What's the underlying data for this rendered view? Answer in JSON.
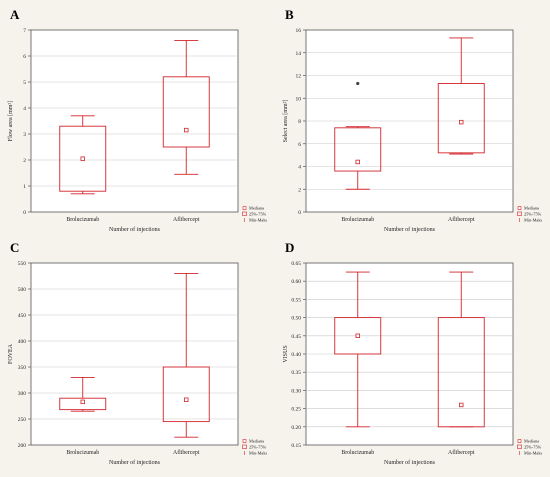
{
  "colors": {
    "box": "#d2232a",
    "plot_bg": "#ffffff",
    "grid": "#c9c9c9",
    "axis": "#555555",
    "outlier": "#444444"
  },
  "legend": {
    "median": "Mediana",
    "box": "25%-75%",
    "whisker": "Min-Maks"
  },
  "chart_data": [
    {
      "panel": "A",
      "type": "box",
      "ylabel": "Flow area [mm²]",
      "xlabel": "Number of injections",
      "categories": [
        "Brolucizumab",
        "Aflibercept"
      ],
      "ylim": [
        0,
        7
      ],
      "yticks": [
        0,
        1,
        2,
        3,
        4,
        5,
        6,
        7
      ],
      "grid": true,
      "boxes": [
        {
          "min": 0.7,
          "q1": 0.8,
          "median": 2.05,
          "q3": 3.3,
          "max": 3.7,
          "outliers": []
        },
        {
          "min": 1.45,
          "q1": 2.5,
          "median": 3.15,
          "q3": 5.2,
          "max": 6.6,
          "outliers": []
        }
      ]
    },
    {
      "panel": "B",
      "type": "box",
      "ylabel": "Select area [mm²]",
      "xlabel": "Number of injections",
      "categories": [
        "Brolucizumab",
        "Aflibercept"
      ],
      "ylim": [
        0,
        16
      ],
      "yticks": [
        0,
        2,
        4,
        6,
        8,
        10,
        12,
        14,
        16
      ],
      "grid": true,
      "boxes": [
        {
          "min": 2.0,
          "q1": 3.6,
          "median": 4.4,
          "q3": 7.4,
          "max": 7.5,
          "outliers": [
            11.3
          ]
        },
        {
          "min": 5.1,
          "q1": 5.2,
          "median": 7.9,
          "q3": 11.3,
          "max": 15.3,
          "outliers": []
        }
      ]
    },
    {
      "panel": "C",
      "type": "box",
      "ylabel": "FOVEA",
      "xlabel": "Number of injections",
      "categories": [
        "Brolucizumab",
        "Aflibercept"
      ],
      "ylim": [
        200,
        550
      ],
      "yticks": [
        200,
        250,
        300,
        350,
        400,
        450,
        500,
        550
      ],
      "grid": true,
      "boxes": [
        {
          "min": 265,
          "q1": 268,
          "median": 283,
          "q3": 290,
          "max": 330,
          "outliers": []
        },
        {
          "min": 215,
          "q1": 245,
          "median": 287,
          "q3": 350,
          "max": 530,
          "outliers": []
        }
      ]
    },
    {
      "panel": "D",
      "type": "box",
      "ylabel": "VISUS",
      "xlabel": "Number of injections",
      "categories": [
        "Brolucizumab",
        "Aflibercept"
      ],
      "ylim": [
        0.15,
        0.65
      ],
      "yticks": [
        0.15,
        0.2,
        0.25,
        0.3,
        0.35,
        0.4,
        0.45,
        0.5,
        0.55,
        0.6,
        0.65
      ],
      "yticklabels": [
        "0.15",
        "0.20",
        "0.25",
        "0.30",
        "0.35",
        "0.40",
        "0.45",
        "0.50",
        "0.55",
        "0.60",
        "0.65"
      ],
      "grid": true,
      "boxes": [
        {
          "min": 0.2,
          "q1": 0.4,
          "median": 0.45,
          "q3": 0.5,
          "max": 0.625,
          "outliers": []
        },
        {
          "min": 0.2,
          "q1": 0.2,
          "median": 0.26,
          "q3": 0.5,
          "max": 0.625,
          "outliers": []
        }
      ]
    }
  ]
}
